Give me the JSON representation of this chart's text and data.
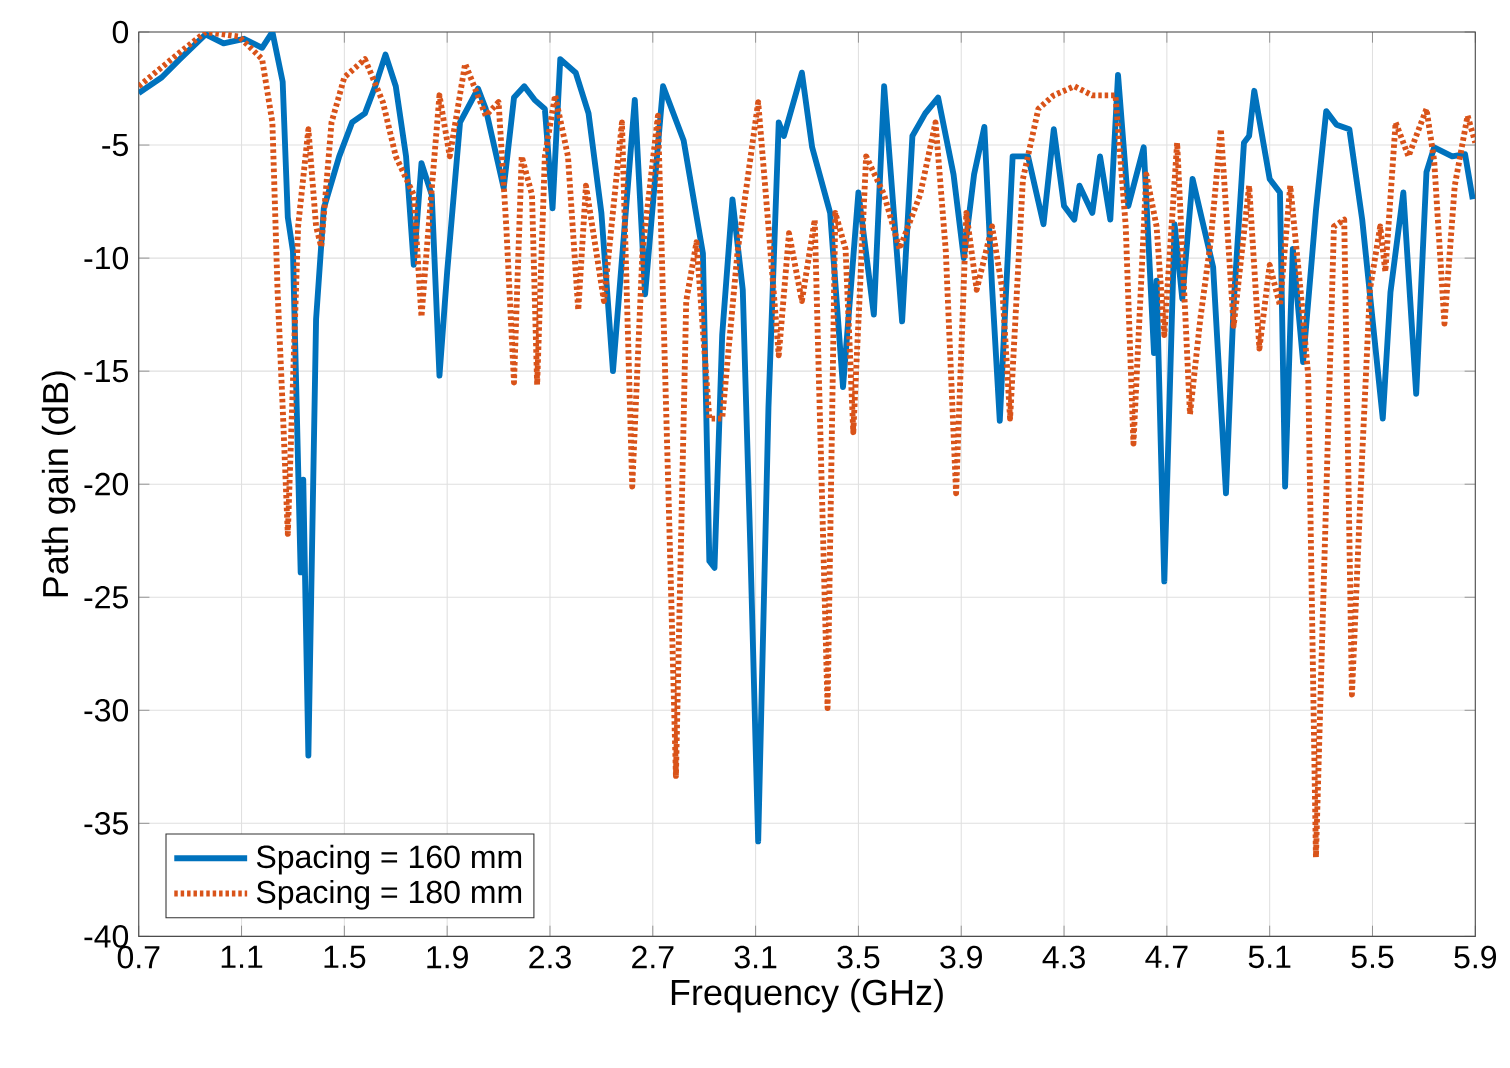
{
  "chart_data": {
    "type": "line",
    "xlabel": "Frequency (GHz)",
    "ylabel": "Path gain (dB)",
    "xlim": [
      0.7,
      5.9
    ],
    "ylim": [
      -40,
      0
    ],
    "xticks": [
      0.7,
      1.1,
      1.5,
      1.9,
      2.3,
      2.7,
      3.1,
      3.5,
      3.9,
      4.3,
      4.7,
      5.1,
      5.5,
      5.9
    ],
    "yticks": [
      -40,
      -35,
      -30,
      -25,
      -20,
      -15,
      -10,
      -5,
      0
    ],
    "grid": true,
    "legend": "bottom left",
    "marker": "none",
    "series": [
      {
        "name": "Spacing = 160 mm",
        "color": "#0072bd",
        "line_style": "solid",
        "x": [
          0.7,
          0.79,
          0.86,
          0.96,
          1.03,
          1.11,
          1.18,
          1.22,
          1.26,
          1.28,
          1.3,
          1.33,
          1.34,
          1.36,
          1.39,
          1.42,
          1.48,
          1.53,
          1.58,
          1.62,
          1.66,
          1.7,
          1.74,
          1.77,
          1.8,
          1.84,
          1.87,
          1.9,
          1.95,
          2.02,
          2.05,
          2.12,
          2.16,
          2.2,
          2.24,
          2.28,
          2.31,
          2.34,
          2.4,
          2.45,
          2.5,
          2.545,
          2.63,
          2.67,
          2.74,
          2.82,
          2.895,
          2.92,
          2.94,
          2.97,
          3.01,
          3.05,
          3.08,
          3.11,
          3.15,
          3.19,
          3.21,
          3.28,
          3.32,
          3.39,
          3.44,
          3.5,
          3.56,
          3.6,
          3.67,
          3.71,
          3.76,
          3.81,
          3.87,
          3.91,
          3.95,
          3.99,
          4.02,
          4.05,
          4.1,
          4.16,
          4.22,
          4.26,
          4.3,
          4.34,
          4.36,
          4.41,
          4.44,
          4.48,
          4.51,
          4.55,
          4.61,
          4.65,
          4.66,
          4.69,
          4.73,
          4.76,
          4.8,
          4.88,
          4.93,
          4.96,
          5.0,
          5.02,
          5.04,
          5.1,
          5.14,
          5.16,
          5.19,
          5.23,
          5.28,
          5.32,
          5.36,
          5.41,
          5.46,
          5.54,
          5.57,
          5.62,
          5.67,
          5.71,
          5.74,
          5.81,
          5.86,
          5.89
        ],
        "values": [
          -2.7,
          -2,
          -1.2,
          -0.1,
          -0.5,
          -0.3,
          -0.7,
          0,
          -2.2,
          -8.2,
          -9.7,
          -23.9,
          -19.8,
          -32,
          -12.7,
          -7.8,
          -5.5,
          -4,
          -3.6,
          -2.4,
          -1,
          -2.4,
          -5.5,
          -10.3,
          -5.8,
          -7.2,
          -15.2,
          -10.6,
          -4,
          -2.5,
          -3.4,
          -6.9,
          -2.9,
          -2.4,
          -3,
          -3.4,
          -7.8,
          -1.2,
          -1.8,
          -3.6,
          -8,
          -15,
          -3,
          -11.6,
          -2.4,
          -4.8,
          -9.8,
          -23.4,
          -23.7,
          -13.4,
          -7.4,
          -11.4,
          -23,
          -35.8,
          -16.6,
          -4,
          -4.6,
          -1.8,
          -5.1,
          -8,
          -15.7,
          -7.1,
          -12.5,
          -2.4,
          -12.8,
          -4.6,
          -3.6,
          -2.9,
          -6.3,
          -10,
          -6.3,
          -4.2,
          -11.3,
          -17.2,
          -5.5,
          -5.5,
          -8.5,
          -4.3,
          -7.7,
          -8.3,
          -6.8,
          -8,
          -5.5,
          -8.3,
          -1.9,
          -7.7,
          -5.1,
          -14.2,
          -11,
          -24.3,
          -8.5,
          -11.8,
          -6.5,
          -10.4,
          -20.4,
          -12,
          -4.9,
          -4.6,
          -2.6,
          -6.5,
          -7.1,
          -20.1,
          -9.6,
          -14.6,
          -7.9,
          -3.5,
          -4.1,
          -4.3,
          -8.3,
          -17.1,
          -11.5,
          -7.1,
          -16,
          -6.2,
          -5.1,
          -5.5,
          -5.4,
          -7.4
        ]
      },
      {
        "name": "Spacing = 180 mm",
        "color": "#d95319",
        "line_style": "dotted",
        "x": [
          0.7,
          0.86,
          0.96,
          1.09,
          1.18,
          1.22,
          1.24,
          1.26,
          1.28,
          1.3,
          1.32,
          1.36,
          1.39,
          1.41,
          1.45,
          1.5,
          1.58,
          1.65,
          1.7,
          1.77,
          1.8,
          1.82,
          1.87,
          1.91,
          1.97,
          2.05,
          2.1,
          2.13,
          2.16,
          2.19,
          2.23,
          2.25,
          2.28,
          2.32,
          2.37,
          2.41,
          2.44,
          2.51,
          2.58,
          2.62,
          2.66,
          2.72,
          2.76,
          2.79,
          2.83,
          2.87,
          2.92,
          2.97,
          3.03,
          3.11,
          3.15,
          3.19,
          3.23,
          3.28,
          3.33,
          3.38,
          3.41,
          3.45,
          3.48,
          3.53,
          3.6,
          3.66,
          3.74,
          3.8,
          3.84,
          3.88,
          3.92,
          3.96,
          4.02,
          4.06,
          4.09,
          4.14,
          4.2,
          4.26,
          4.34,
          4.41,
          4.5,
          4.54,
          4.57,
          4.62,
          4.66,
          4.69,
          4.74,
          4.79,
          4.83,
          4.87,
          4.91,
          4.96,
          5.02,
          5.06,
          5.1,
          5.14,
          5.18,
          5.22,
          5.25,
          5.28,
          5.35,
          5.39,
          5.42,
          5.46,
          5.49,
          5.53,
          5.55,
          5.59,
          5.64,
          5.71,
          5.74,
          5.78,
          5.82,
          5.87,
          5.9
        ],
        "values": [
          -2.4,
          -0.9,
          0,
          -0.2,
          -1.2,
          -4,
          -11.4,
          -16.6,
          -22.2,
          -15.5,
          -8.6,
          -4.3,
          -8.6,
          -9.5,
          -4,
          -2,
          -1.2,
          -3.1,
          -5.5,
          -7.2,
          -12.6,
          -9.7,
          -2.8,
          -5.5,
          -1.4,
          -3.7,
          -3.1,
          -8.6,
          -15.5,
          -5.5,
          -7.2,
          -15.6,
          -5.5,
          -2.8,
          -5.5,
          -12.3,
          -6.8,
          -11.9,
          -4,
          -20.1,
          -9.7,
          -3.7,
          -20,
          -32.9,
          -11.9,
          -9.3,
          -17.1,
          -17.1,
          -9.7,
          -3.1,
          -8.6,
          -14.3,
          -8.9,
          -11.9,
          -8.3,
          -29.9,
          -8,
          -9.6,
          -17.7,
          -5.5,
          -7.2,
          -9.6,
          -7.2,
          -4,
          -9.7,
          -20.4,
          -8,
          -11.4,
          -8.6,
          -11.4,
          -17.1,
          -6.5,
          -3.4,
          -2.8,
          -2.4,
          -2.8,
          -2.8,
          -8.6,
          -18.2,
          -6.3,
          -8.6,
          -13.4,
          -4.9,
          -16.9,
          -12.7,
          -9.3,
          -4.3,
          -13,
          -6.8,
          -14,
          -10.3,
          -12.1,
          -6.8,
          -11.4,
          -15.2,
          -36.5,
          -8.6,
          -8.3,
          -29.3,
          -18.7,
          -11.4,
          -8.6,
          -10.6,
          -4,
          -5.5,
          -3.4,
          -5.7,
          -12.9,
          -6.8,
          -3.7,
          -4.9
        ]
      }
    ]
  }
}
